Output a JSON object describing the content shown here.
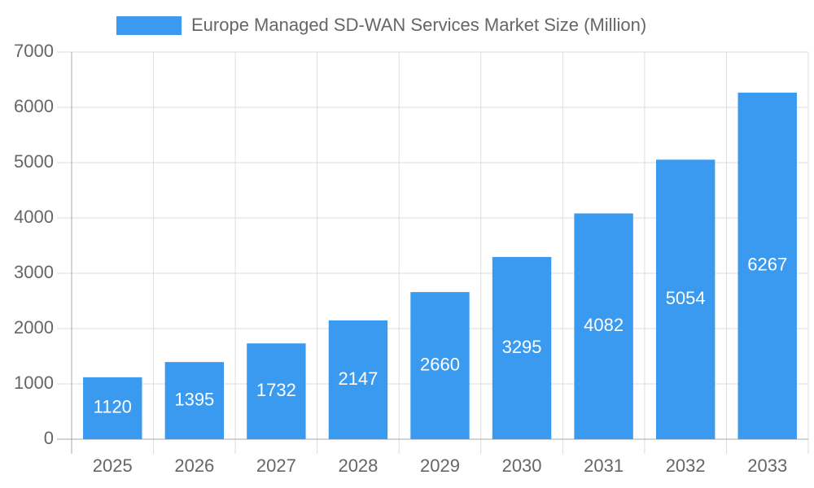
{
  "chart_data": {
    "type": "bar",
    "categories": [
      "2025",
      "2026",
      "2027",
      "2028",
      "2029",
      "2030",
      "2031",
      "2032",
      "2033"
    ],
    "series": [
      {
        "name": "Europe Managed SD-WAN Services Market Size (Million)",
        "color": "#3a9af0",
        "values": [
          1120,
          1395,
          1732,
          2147,
          2660,
          3295,
          4082,
          5054,
          6267
        ]
      }
    ],
    "ylim": [
      0,
      7000
    ],
    "yticks": [
      0,
      1000,
      2000,
      3000,
      4000,
      5000,
      6000,
      7000
    ],
    "grid": true,
    "legend": "top",
    "data_labels": true
  }
}
